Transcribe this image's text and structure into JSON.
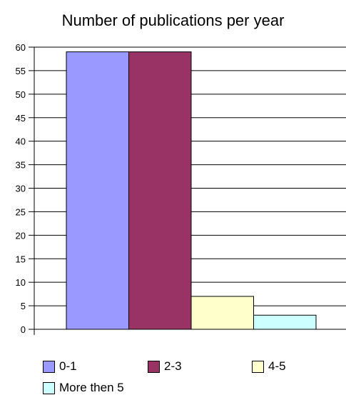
{
  "chart_data": {
    "type": "bar",
    "title": "Number of publications per year",
    "xlabel": "",
    "ylabel": "",
    "ylim": [
      0,
      60
    ],
    "yticks": [
      0,
      5,
      10,
      15,
      20,
      25,
      30,
      35,
      40,
      45,
      50,
      55,
      60
    ],
    "grid": true,
    "legend_position": "bottom",
    "series": [
      {
        "name": "0-1",
        "value": 59,
        "color": "#9999ff"
      },
      {
        "name": "2-3",
        "value": 59,
        "color": "#993366"
      },
      {
        "name": "4-5",
        "value": 7,
        "color": "#ffffcc"
      },
      {
        "name": "More then 5",
        "value": 3,
        "color": "#ccffff"
      }
    ]
  }
}
